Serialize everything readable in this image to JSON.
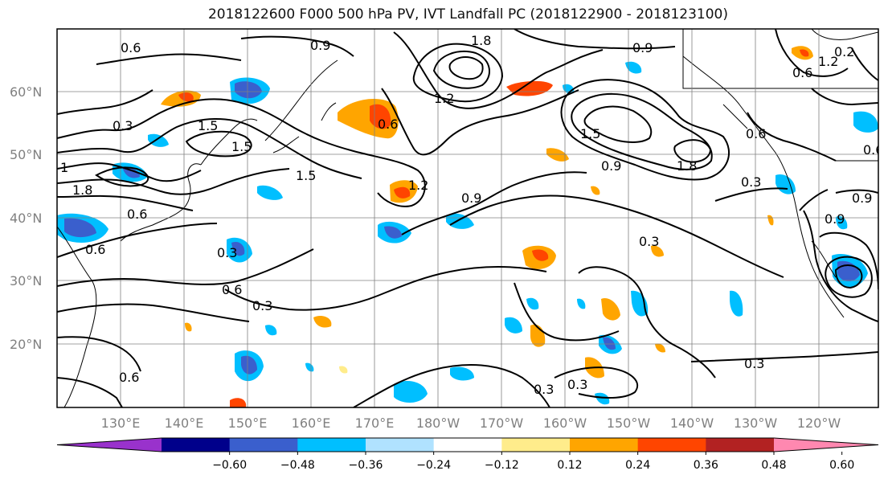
{
  "title": "2018122600 F000 500 hPa PV, IVT Landfall PC (2018122900 - 2018123100)",
  "lat_labels": [
    "60°N",
    "50°N",
    "40°N",
    "30°N",
    "20°N"
  ],
  "lon_labels": [
    "130°E",
    "140°E",
    "150°E",
    "160°E",
    "170°E",
    "180°W",
    "170°W",
    "160°W",
    "150°W",
    "140°W",
    "130°W",
    "120°W"
  ],
  "contour_labels": [
    "0.6",
    "0.9",
    "1.8",
    "1.5",
    "0.3",
    "1.5",
    "1.5",
    "1.2",
    "1",
    "1.8",
    "0.6",
    "0.6",
    "0.3",
    "0.6",
    "0.3",
    "0.6",
    "0.6",
    "0.9",
    "1.2",
    "0.9",
    "1.5",
    "0.9",
    "1.8",
    "0.3",
    "0.3",
    "0.3",
    "0.9",
    "0.3",
    "0.3",
    "0.6",
    "0.6",
    "0.9",
    "0.6",
    "0.2",
    "1.2"
  ],
  "colorbar": {
    "colors": [
      "#9932cc",
      "#00008b",
      "#3a5fcd",
      "#00bfff",
      "#b0e2ff",
      "#ffffff",
      "#ffec8b",
      "#ffa500",
      "#ff4500",
      "#b22222",
      "#ff88b0"
    ],
    "tick_labels": [
      "−0.60",
      "−0.48",
      "−0.36",
      "−0.24",
      "−0.12",
      "0.12",
      "0.24",
      "0.36",
      "0.48",
      "0.60"
    ]
  }
}
